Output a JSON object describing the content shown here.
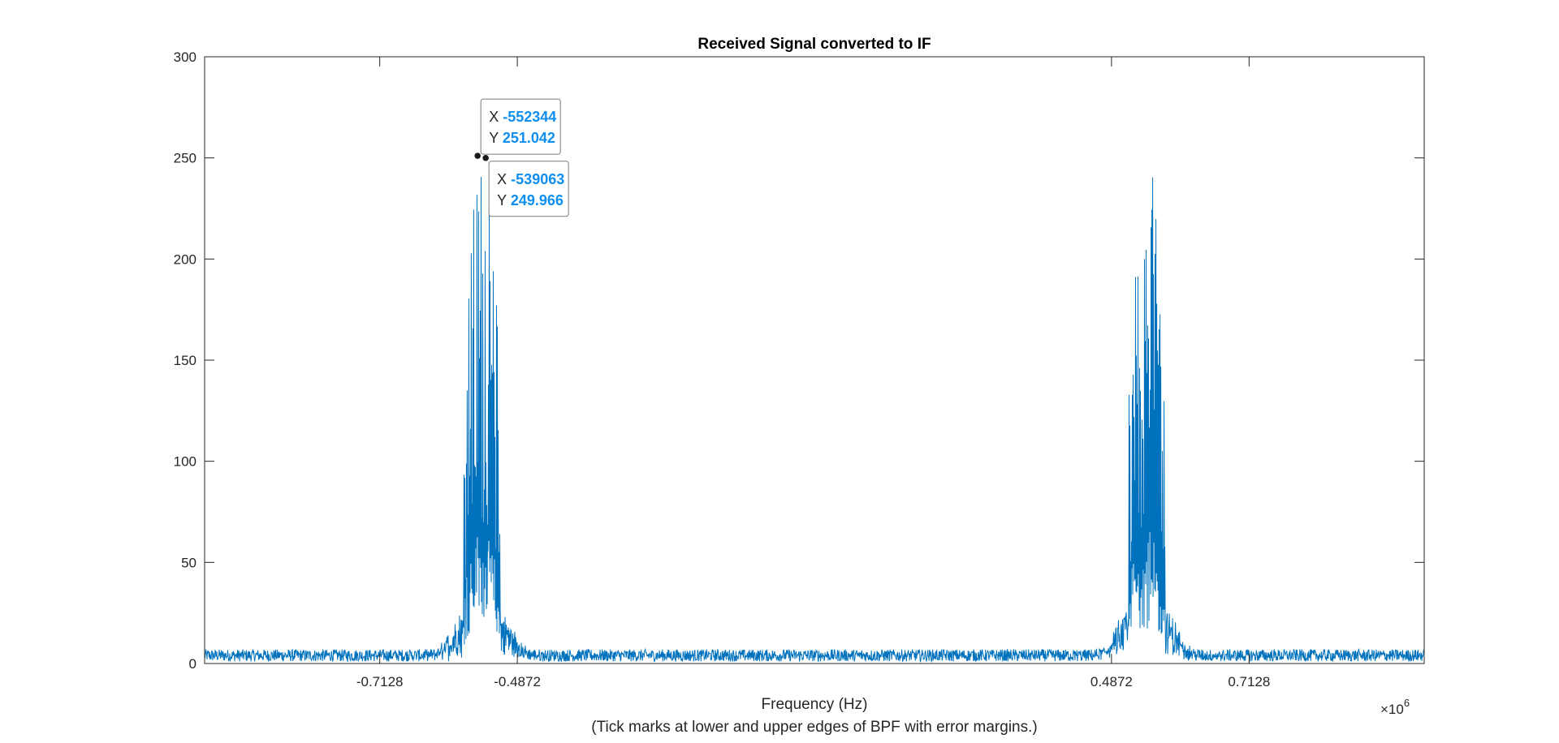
{
  "chart_data": {
    "type": "line",
    "title": "Received Signal converted to IF",
    "xlabel": "Frequency (Hz)",
    "xlabel_note": "(Tick marks at lower and upper edges of BPF with error margins.)",
    "ylabel": "",
    "xlim": [
      -1000000,
      1000000
    ],
    "ylim": [
      0,
      300
    ],
    "x_exponent_label": "×10",
    "x_exponent_power": "6",
    "x_ticks": [
      {
        "value": -712800,
        "label": "-0.7128"
      },
      {
        "value": -487200,
        "label": "-0.4872"
      },
      {
        "value": 487200,
        "label": "0.4872"
      },
      {
        "value": 712800,
        "label": "0.7128"
      }
    ],
    "y_ticks": [
      {
        "value": 0,
        "label": "0"
      },
      {
        "value": 50,
        "label": "50"
      },
      {
        "value": 100,
        "label": "100"
      },
      {
        "value": 150,
        "label": "150"
      },
      {
        "value": 200,
        "label": "200"
      },
      {
        "value": 250,
        "label": "250"
      },
      {
        "value": 300,
        "label": "300"
      }
    ],
    "grid": false,
    "series": [
      {
        "color": "#0072bd",
        "noise_floor": [
          1,
          7
        ],
        "peaks": [
          {
            "center": -545000,
            "halfwidth": 55000,
            "max": 251.042
          },
          {
            "center": 545000,
            "halfwidth": 55000,
            "max": 251.0
          }
        ]
      }
    ],
    "datatips": [
      {
        "x": -552344,
        "y": 251.042,
        "x_label": "X",
        "y_label": "Y",
        "x_text": "-552344",
        "y_text": "251.042"
      },
      {
        "x": -539063,
        "y": 249.966,
        "x_label": "X",
        "y_label": "Y",
        "x_text": "-539063",
        "y_text": "249.966"
      }
    ]
  }
}
